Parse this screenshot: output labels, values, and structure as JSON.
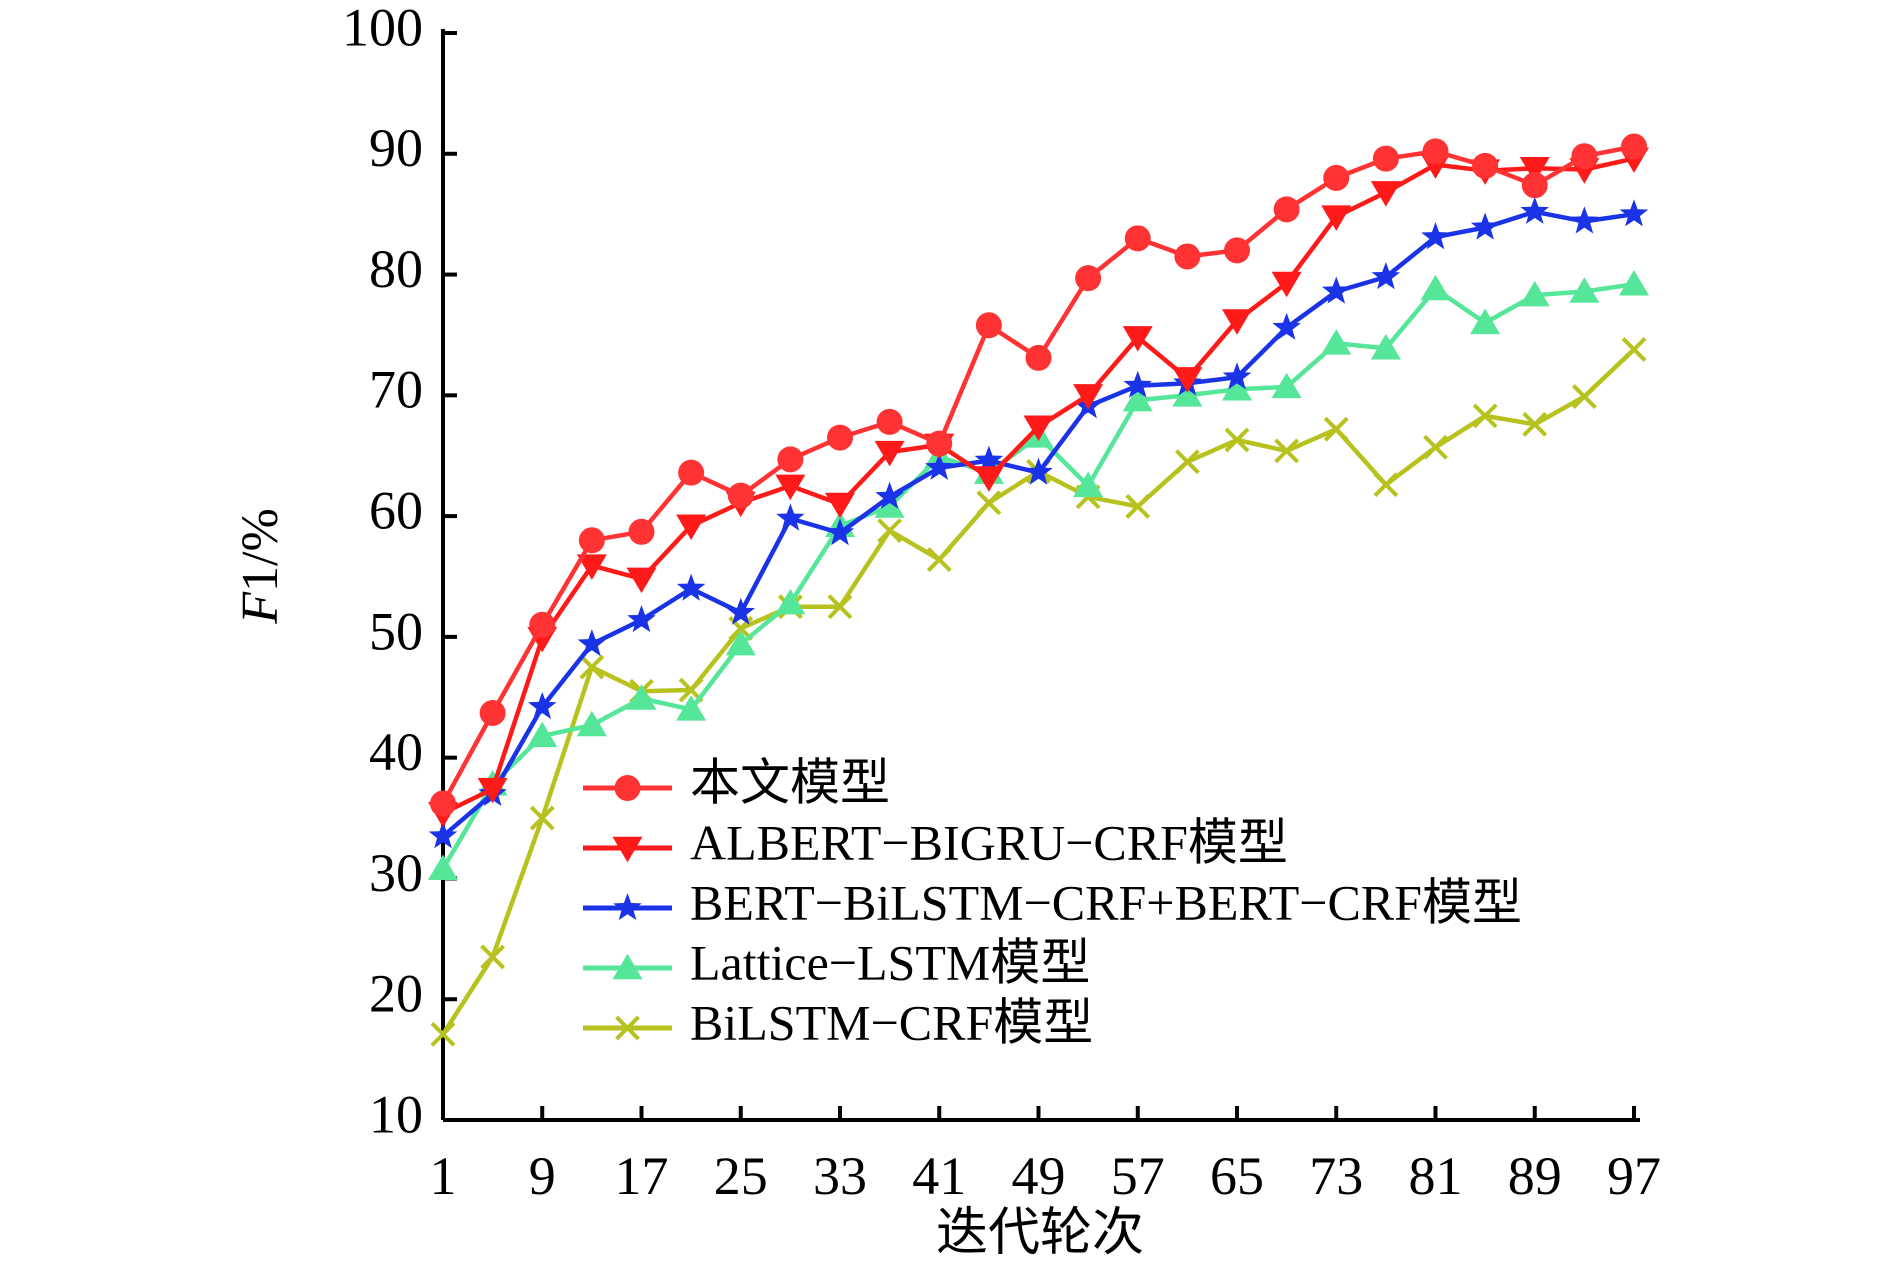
{
  "chart_data": {
    "type": "line",
    "xlabel": "迭代轮次",
    "ylabel": "F1/%",
    "xlim": [
      1,
      97
    ],
    "ylim": [
      10,
      100
    ],
    "x_ticks": [
      "1",
      "9",
      "17",
      "25",
      "33",
      "41",
      "49",
      "57",
      "65",
      "73",
      "81",
      "89",
      "97"
    ],
    "y_ticks": [
      "10",
      "20",
      "30",
      "40",
      "50",
      "60",
      "70",
      "80",
      "90",
      "100"
    ],
    "x": [
      1,
      5,
      9,
      13,
      17,
      21,
      25,
      29,
      33,
      37,
      41,
      45,
      49,
      53,
      57,
      61,
      65,
      69,
      73,
      77,
      81,
      85,
      89,
      93,
      97
    ],
    "legend_position": "lower-right",
    "grid": false,
    "series": [
      {
        "name": "本文模型",
        "color": "#ff3333",
        "marker": "circle",
        "values": [
          36.2,
          43.7,
          51.0,
          58.0,
          58.7,
          63.6,
          61.7,
          64.7,
          66.5,
          67.8,
          66.0,
          75.8,
          73.1,
          79.7,
          83.0,
          81.5,
          82.0,
          85.4,
          88.0,
          89.6,
          90.2,
          89.0,
          87.4,
          89.8,
          90.6
        ]
      },
      {
        "name": "ALBERT−BIGRU−CRF模型",
        "color": "#ff1a1a",
        "marker": "triangle-down",
        "values": [
          35.4,
          37.4,
          49.9,
          55.9,
          54.8,
          59.2,
          61.1,
          62.5,
          61.0,
          65.3,
          65.9,
          63.2,
          67.4,
          70.0,
          74.8,
          71.4,
          76.2,
          79.3,
          84.8,
          86.8,
          89.1,
          88.6,
          88.8,
          88.7,
          89.6
        ]
      },
      {
        "name": "BERT−BiLSTM−CRF+BERT−CRF模型",
        "color": "#1a33e6",
        "marker": "star",
        "values": [
          33.5,
          37.0,
          44.2,
          49.4,
          51.4,
          54.0,
          52.0,
          59.8,
          58.6,
          61.6,
          64.0,
          64.6,
          63.6,
          69.1,
          70.8,
          71.0,
          71.5,
          75.6,
          78.6,
          79.8,
          83.1,
          83.9,
          85.2,
          84.4,
          85.0
        ]
      },
      {
        "name": "Lattice−LSTM模型",
        "color": "#55e699",
        "marker": "triangle-up",
        "values": [
          30.8,
          37.8,
          41.8,
          42.7,
          44.9,
          44.0,
          49.4,
          52.8,
          59.2,
          60.8,
          64.9,
          63.6,
          66.6,
          62.5,
          69.6,
          70.0,
          70.5,
          70.7,
          74.3,
          73.9,
          78.8,
          76.0,
          78.3,
          78.6,
          79.2
        ]
      },
      {
        "name": "BiLSTM−CRF模型",
        "color": "#b8c21f",
        "marker": "x",
        "values": [
          17.1,
          23.5,
          35.0,
          47.5,
          45.5,
          45.6,
          50.7,
          52.5,
          52.5,
          58.8,
          56.4,
          61.1,
          63.7,
          61.6,
          60.8,
          64.5,
          66.3,
          65.4,
          67.2,
          62.6,
          65.7,
          68.3,
          67.6,
          69.9,
          73.8
        ]
      }
    ]
  }
}
